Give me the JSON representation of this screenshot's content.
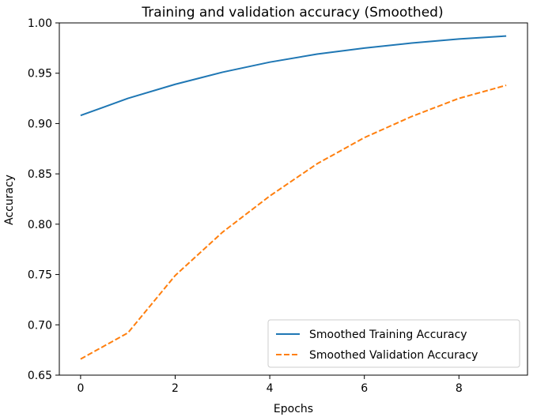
{
  "chart_data": {
    "type": "line",
    "title": "Training and validation accuracy (Smoothed)",
    "xlabel": "Epochs",
    "ylabel": "Accuracy",
    "xlim": [
      -0.45,
      9.45
    ],
    "ylim": [
      0.65,
      1.0
    ],
    "xticks": [
      0,
      2,
      4,
      6,
      8
    ],
    "yticks": [
      0.65,
      0.7,
      0.75,
      0.8,
      0.85,
      0.9,
      0.95,
      1.0
    ],
    "ytick_labels": [
      "0.65",
      "0.70",
      "0.75",
      "0.80",
      "0.85",
      "0.90",
      "0.95",
      "1.00"
    ],
    "grid": false,
    "legend_position": "lower-right",
    "x": [
      0,
      1,
      2,
      3,
      4,
      5,
      6,
      7,
      8,
      9
    ],
    "series": [
      {
        "name": "Smoothed Training Accuracy",
        "color": "#1f77b4",
        "style": "solid",
        "values": [
          0.908,
          0.925,
          0.939,
          0.951,
          0.961,
          0.969,
          0.975,
          0.98,
          0.984,
          0.987
        ]
      },
      {
        "name": "Smoothed Validation Accuracy",
        "color": "#ff7f0e",
        "style": "dashed",
        "values": [
          0.666,
          0.692,
          0.749,
          0.792,
          0.828,
          0.86,
          0.886,
          0.907,
          0.925,
          0.938
        ]
      }
    ]
  }
}
